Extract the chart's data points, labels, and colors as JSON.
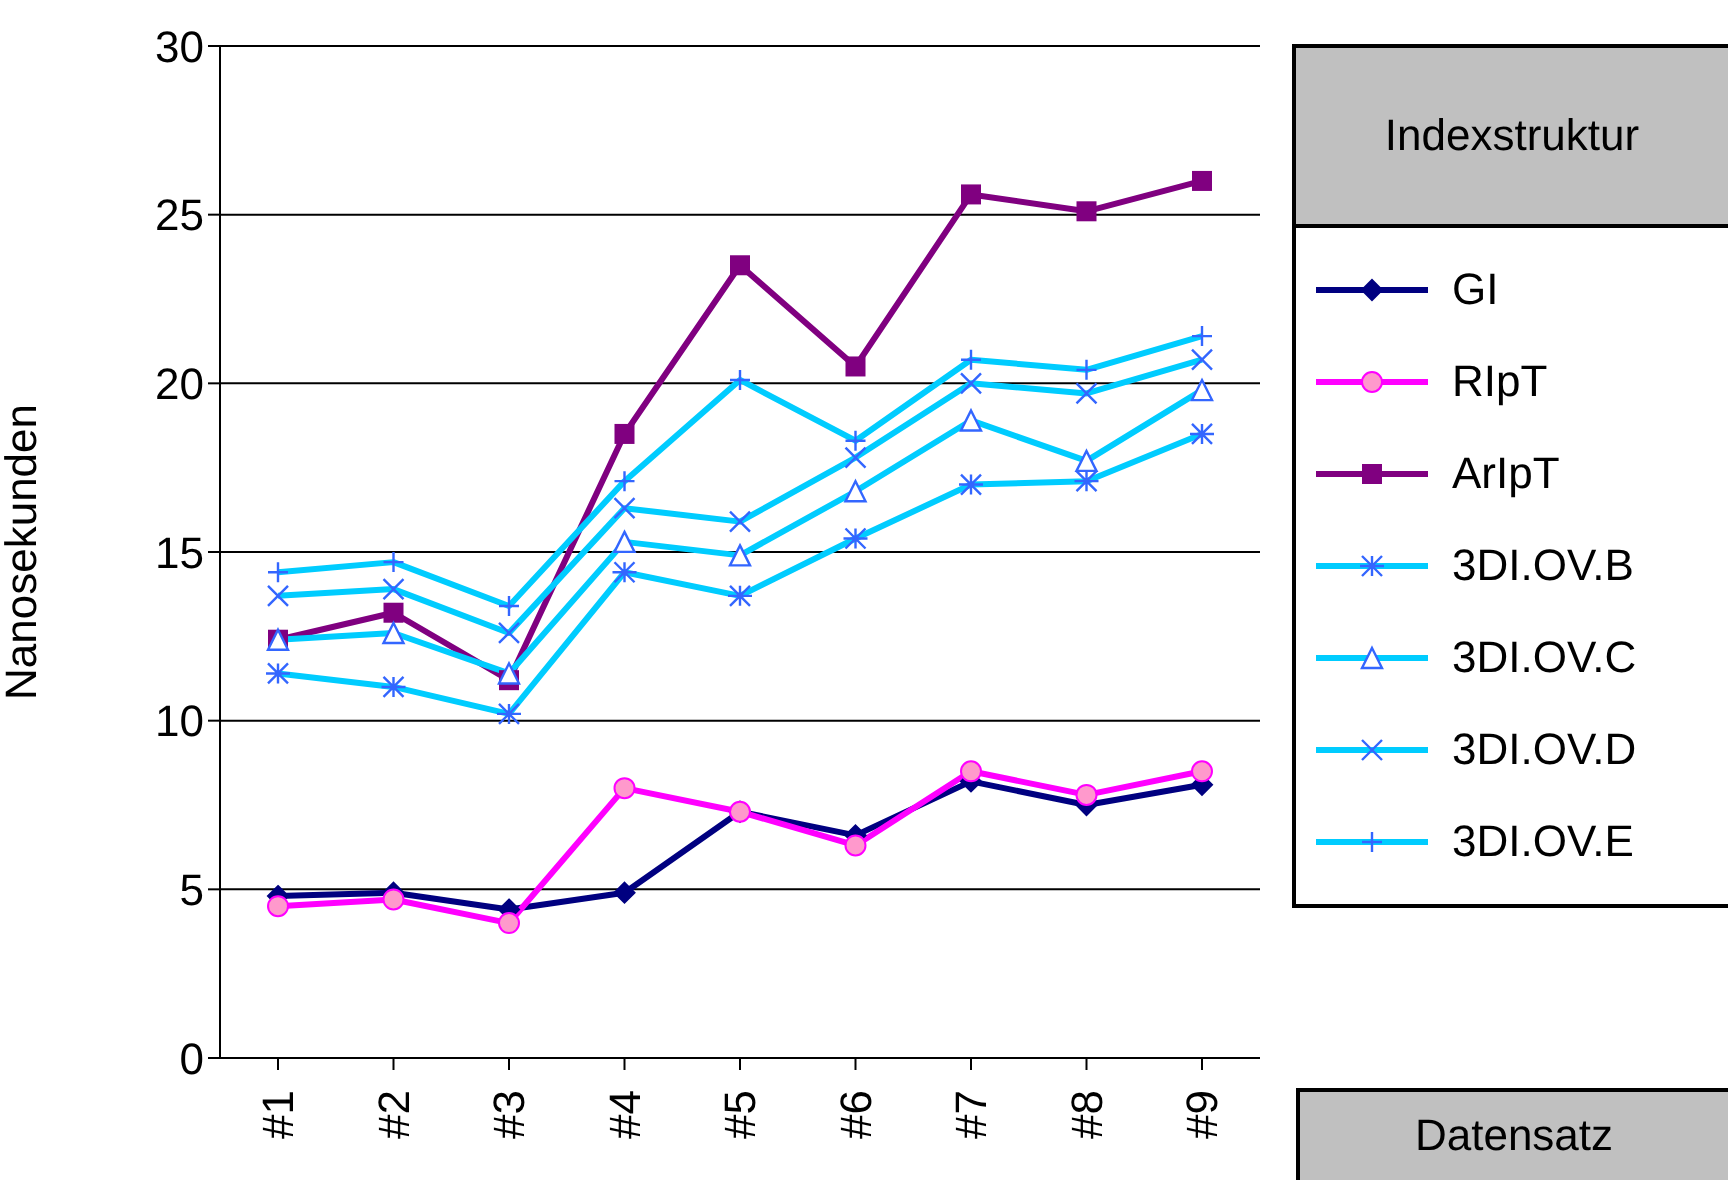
{
  "chart_data": {
    "type": "line",
    "ylabel": "Nanosekunden",
    "xlabel": "Datensatz",
    "legend_title": "Indexstruktur",
    "legend": "right",
    "grid": "y",
    "categories": [
      "#1",
      "#2",
      "#3",
      "#4",
      "#5",
      "#6",
      "#7",
      "#8",
      "#9"
    ],
    "ylim": [
      0,
      30
    ],
    "yticks": [
      0,
      5,
      10,
      15,
      20,
      25,
      30
    ],
    "series": [
      {
        "name": "GI",
        "color": "#000080",
        "marker": "diamond",
        "values": [
          4.8,
          4.9,
          4.4,
          4.9,
          7.3,
          6.6,
          8.2,
          7.5,
          8.1
        ]
      },
      {
        "name": "RIpT",
        "color": "#ff00ff",
        "marker": "circle",
        "values": [
          4.5,
          4.7,
          4.0,
          8.0,
          7.3,
          6.3,
          8.5,
          7.8,
          8.5
        ]
      },
      {
        "name": "ArIpT",
        "color": "#800080",
        "marker": "square",
        "values": [
          12.4,
          13.2,
          11.2,
          18.5,
          23.5,
          20.5,
          25.6,
          25.1,
          26.0
        ]
      },
      {
        "name": "3DI.OV.B",
        "color": "#00ccff",
        "marker": "cross",
        "values": [
          11.4,
          11.0,
          10.2,
          14.4,
          13.7,
          15.4,
          17.0,
          17.1,
          18.5
        ]
      },
      {
        "name": "3DI.OV.C",
        "color": "#00ccff",
        "marker": "triangle",
        "values": [
          12.4,
          12.6,
          11.4,
          15.3,
          14.9,
          16.8,
          18.9,
          17.7,
          19.8
        ]
      },
      {
        "name": "3DI.OV.D",
        "color": "#00ccff",
        "marker": "x",
        "values": [
          13.7,
          13.9,
          12.6,
          16.3,
          15.9,
          17.8,
          20.0,
          19.7,
          20.7
        ]
      },
      {
        "name": "3DI.OV.E",
        "color": "#00ccff",
        "marker": "plus",
        "values": [
          14.4,
          14.7,
          13.4,
          17.1,
          20.1,
          18.3,
          20.7,
          20.4,
          21.4
        ]
      }
    ]
  }
}
